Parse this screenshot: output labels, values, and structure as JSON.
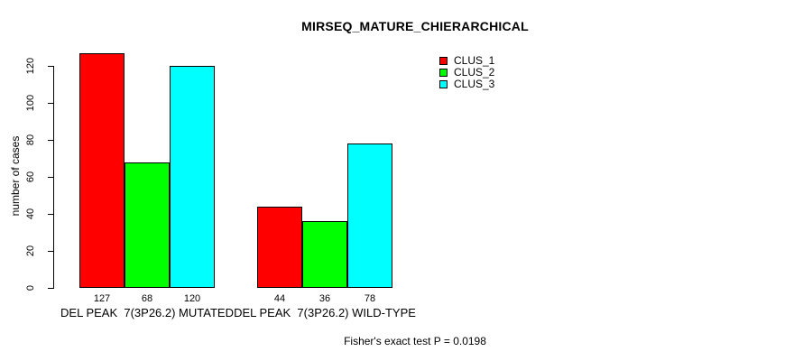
{
  "chart_data": {
    "type": "bar",
    "title": "MIRSEQ_MATURE_CHIERARCHICAL",
    "xlabel": "",
    "ylabel": "number of cases",
    "ylim": [
      0,
      120
    ],
    "yticks": [
      0,
      20,
      40,
      60,
      80,
      100,
      120
    ],
    "grid": false,
    "legend_position": "top-right-inside",
    "series": [
      {
        "name": "CLUS_1",
        "color": "#ff0000"
      },
      {
        "name": "CLUS_2",
        "color": "#00ff00"
      },
      {
        "name": "CLUS_3",
        "color": "#00ffff"
      }
    ],
    "groups": [
      {
        "label": "DEL PEAK  7(3P26.2) MUTATED",
        "values": [
          127,
          68,
          120
        ]
      },
      {
        "label": "DEL PEAK  7(3P26.2) WILD-TYPE",
        "values": [
          44,
          36,
          78
        ]
      }
    ],
    "bar_value_labels": [
      127,
      68,
      120,
      44,
      36,
      78
    ],
    "bar_border_color": "#000000",
    "annotation": "Fisher's exact test P = 0.0198"
  }
}
